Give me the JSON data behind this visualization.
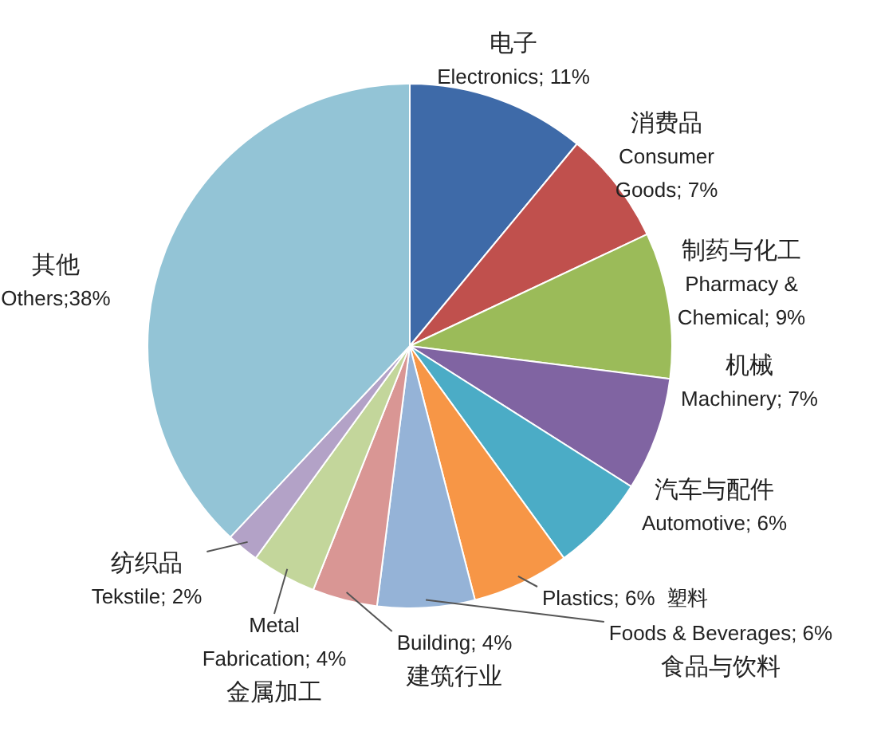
{
  "chart_data": {
    "type": "pie",
    "categories": [
      "电子\nElectronics; 11%",
      "消费品\nConsumer\nGoods; 7%",
      "制药与化工\nPharmacy &\nChemical; 9%",
      "机械\nMachinery; 7%",
      "汽车与配件\nAutomotive; 6%",
      "Plastics; 6%  塑料",
      "Foods & Beverages; 6%\n食品与饮料",
      "Building; 4%\n建筑行业",
      "Metal\nFabrication; 4%\n金属加工",
      "纺织品\nTekstile; 2%",
      "其他\nOthers;38%"
    ],
    "values": [
      11,
      7,
      9,
      7,
      6,
      6,
      6,
      4,
      4,
      2,
      38
    ],
    "colors": [
      "#3e6aa8",
      "#c0504d",
      "#9bbb59",
      "#8064a2",
      "#4bacc6",
      "#f79646",
      "#95b3d7",
      "#d99694",
      "#c3d69b",
      "#b3a2c7",
      "#93c4d6"
    ],
    "legend": false
  }
}
